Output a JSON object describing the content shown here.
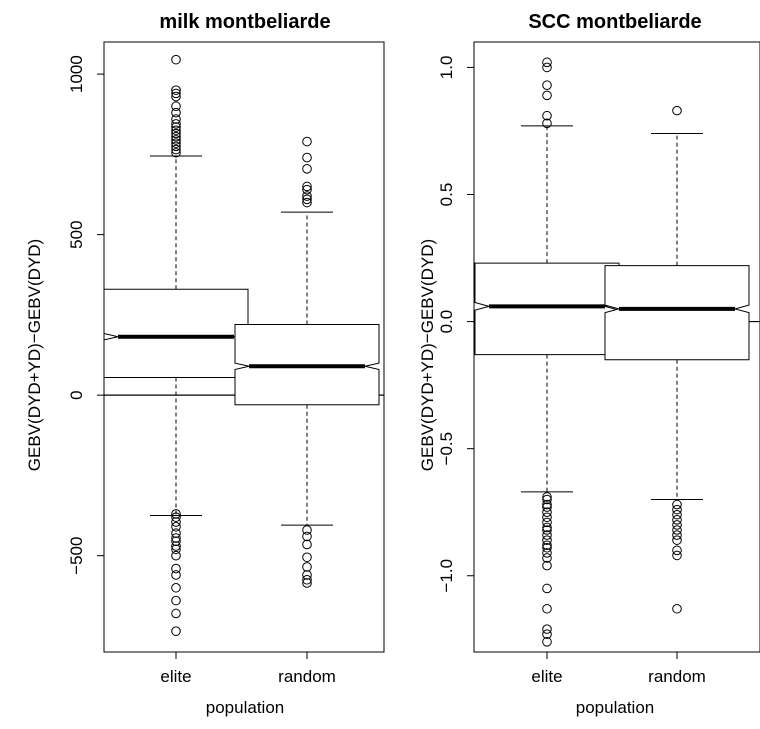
{
  "chart_data": [
    {
      "type": "boxplot",
      "notched": true,
      "title": "milk montbeliarde",
      "xlabel": "population",
      "ylabel": "GEBV(DYD+YD)−GEBV(DYD)",
      "categories": [
        "elite",
        "random"
      ],
      "ylim": [
        -800,
        1100
      ],
      "yticks": [
        -500,
        0,
        500,
        1000
      ],
      "ytick_labels": [
        "−500",
        "0",
        "500",
        "1000"
      ],
      "reference_line_y": 0,
      "boxes": [
        {
          "name": "elite",
          "whisker_low": -375,
          "q1": 55,
          "median": 182,
          "q3": 330,
          "whisker_high": 745,
          "notch_low": 172,
          "notch_high": 192,
          "outliers": [
            1045,
            950,
            940,
            930,
            900,
            880,
            860,
            845,
            835,
            825,
            815,
            805,
            795,
            785,
            775,
            765,
            755,
            -370,
            -380,
            -395,
            -410,
            -430,
            -445,
            -455,
            -470,
            -480,
            -500,
            -540,
            -560,
            -600,
            -640,
            -680,
            -735
          ]
        },
        {
          "name": "random",
          "whisker_low": -405,
          "q1": -30,
          "median": 90,
          "q3": 220,
          "whisker_high": 570,
          "notch_low": 80,
          "notch_high": 100,
          "outliers": [
            790,
            740,
            705,
            650,
            640,
            620,
            610,
            600,
            -420,
            -440,
            -465,
            -505,
            -535,
            -560,
            -575,
            -585
          ]
        }
      ]
    },
    {
      "type": "boxplot",
      "notched": true,
      "title": "SCC montbeliarde",
      "xlabel": "population",
      "ylabel": "GEBV(DYD+YD)−GEBV(DYD)",
      "categories": [
        "elite",
        "random"
      ],
      "ylim": [
        -1.3,
        1.1
      ],
      "yticks": [
        -1.0,
        -0.5,
        0.0,
        0.5,
        1.0
      ],
      "ytick_labels": [
        "−1.0",
        "−0.5",
        "0.0",
        "0.5",
        "1.0"
      ],
      "reference_line_y": 0,
      "boxes": [
        {
          "name": "elite",
          "whisker_low": -0.67,
          "q1": -0.13,
          "median": 0.06,
          "q3": 0.23,
          "whisker_high": 0.77,
          "notch_low": 0.045,
          "notch_high": 0.075,
          "outliers": [
            1.02,
            1.0,
            0.93,
            0.89,
            0.81,
            0.78,
            -0.69,
            -0.7,
            -0.72,
            -0.73,
            -0.75,
            -0.77,
            -0.79,
            -0.81,
            -0.82,
            -0.84,
            -0.86,
            -0.88,
            -0.89,
            -0.91,
            -0.93,
            -0.96,
            -1.05,
            -1.13,
            -1.21,
            -1.23,
            -1.26
          ]
        },
        {
          "name": "random",
          "whisker_low": -0.7,
          "q1": -0.15,
          "median": 0.05,
          "q3": 0.22,
          "whisker_high": 0.74,
          "notch_low": 0.035,
          "notch_high": 0.065,
          "outliers": [
            0.83,
            -0.72,
            -0.74,
            -0.76,
            -0.78,
            -0.8,
            -0.82,
            -0.84,
            -0.86,
            -0.9,
            -0.92,
            -1.13
          ]
        }
      ]
    }
  ]
}
